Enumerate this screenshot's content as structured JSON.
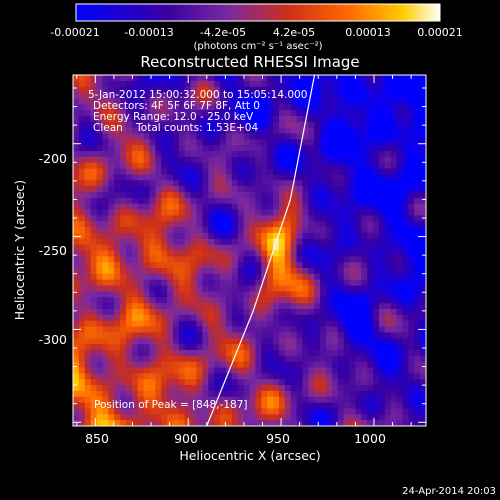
{
  "chart_data": {
    "type": "heatmap",
    "title": "Reconstructed RHESSI Image",
    "xlabel": "Heliocentric X (arcsec)",
    "ylabel": "Heliocentric Y (arcsec)",
    "xlim": [
      838,
      1028
    ],
    "ylim": [
      -352,
      -163
    ],
    "x_ticks": [
      "850",
      "900",
      "950",
      "1000"
    ],
    "y_ticks": [
      "-200",
      "-250",
      "-300"
    ],
    "colorbar": {
      "colormap": [
        "#0000ff",
        "#3a00a0",
        "#7a2aa0",
        "#cc2e1a",
        "#ff6a00",
        "#ffcc00",
        "#ffffff"
      ],
      "ticks": [
        "-0.00021",
        "-0.00013",
        "-4.2e-05",
        "4.2e-05",
        "0.00013",
        "0.00021"
      ],
      "label": "(photons cm⁻² s⁻¹ asec⁻²)"
    },
    "annotations": [
      "5-Jan-2012 15:00:32.000 to 15:05:14.000",
      "Detectors: 4F 5F 6F 7F 8F, Att 0",
      "Energy Range: 12.0 - 25.0 keV",
      "Clean    Total counts: 1.53E+04"
    ],
    "peak_label": "Position of Peak = [848,-187]",
    "limb_curve": [
      [
        910,
        -352
      ],
      [
        935,
        -290
      ],
      [
        955,
        -230
      ],
      [
        968,
        -163
      ]
    ],
    "grid": false
  },
  "footer": {
    "date": "24-Apr-2014 20:03"
  }
}
